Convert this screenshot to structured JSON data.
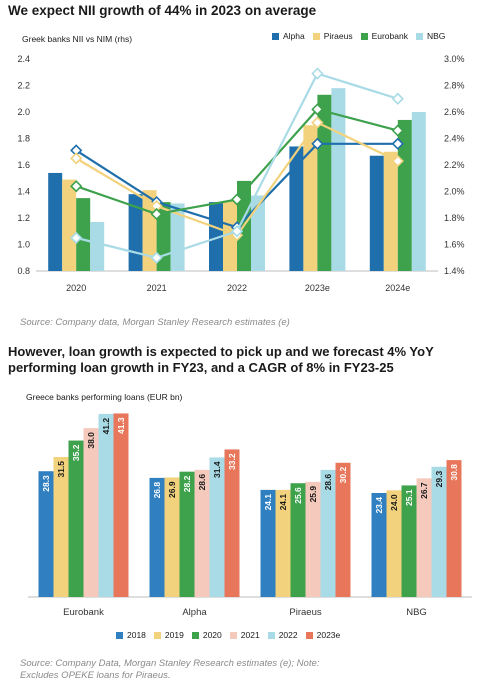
{
  "chart_data": [
    {
      "type": "bar",
      "title": "We expect NII growth of 44% in 2023 on average",
      "subtitle": "Greek banks NII vs NIM (rhs)",
      "categories": [
        "2020",
        "2021",
        "2022",
        "2023e",
        "2024e"
      ],
      "ylim": [
        0.8,
        2.4
      ],
      "yticks": [
        "0.8",
        "1.0",
        "1.2",
        "1.4",
        "1.6",
        "1.8",
        "2.0",
        "2.2",
        "2.4"
      ],
      "y2lim": [
        1.4,
        3.0
      ],
      "y2ticks": [
        "1.4%",
        "1.6%",
        "1.8%",
        "2.0%",
        "2.2%",
        "2.4%",
        "2.6%",
        "2.8%",
        "3.0%"
      ],
      "series": [
        {
          "name": "Alpha",
          "color": "#1f6fad",
          "values": [
            1.54,
            1.38,
            1.32,
            1.74,
            1.67
          ]
        },
        {
          "name": "Piraeus",
          "color": "#f2d27c",
          "values": [
            1.49,
            1.41,
            1.33,
            1.9,
            1.7
          ]
        },
        {
          "name": "Eurobank",
          "color": "#3ea14c",
          "values": [
            1.35,
            1.32,
            1.48,
            2.13,
            1.94
          ]
        },
        {
          "name": "NBG",
          "color": "#a9dbe6",
          "values": [
            1.17,
            1.31,
            1.37,
            2.18,
            2.0
          ]
        }
      ],
      "lines_rhs": [
        {
          "name": "Alpha",
          "color": "#1f6fad",
          "values": [
            2.31,
            1.92,
            1.73,
            2.36,
            2.36
          ]
        },
        {
          "name": "Piraeus",
          "color": "#f2d27c",
          "values": [
            2.25,
            1.89,
            1.67,
            2.52,
            2.23
          ]
        },
        {
          "name": "Eurobank",
          "color": "#3ea14c",
          "values": [
            2.04,
            1.83,
            1.94,
            2.62,
            2.46
          ]
        },
        {
          "name": "NBG",
          "color": "#a9dbe6",
          "values": [
            1.65,
            1.5,
            1.7,
            2.89,
            2.7
          ]
        }
      ],
      "source": "Source: Company data, Morgan Stanley Research estimates (e)"
    },
    {
      "type": "bar",
      "title_line1": "However, loan growth is expected to pick up and we forecast 4% YoY",
      "title_line2": "performing loan growth in FY23, and a CAGR of 8% in FY23-25",
      "subtitle": "Greece banks performing loans (EUR bn)",
      "categories": [
        "Eurobank",
        "Alpha",
        "Piraeus",
        "NBG"
      ],
      "ylim": [
        0,
        45
      ],
      "series": [
        {
          "name": "2018",
          "color": "#2f7fc1",
          "values": [
            28.3,
            26.8,
            24.1,
            23.4
          ]
        },
        {
          "name": "2019",
          "color": "#f2d27c",
          "values": [
            31.5,
            26.9,
            24.1,
            24.0
          ]
        },
        {
          "name": "2020",
          "color": "#3ea14c",
          "values": [
            35.2,
            28.2,
            25.6,
            25.1
          ]
        },
        {
          "name": "2021",
          "color": "#f6c9bd",
          "values": [
            38.0,
            28.6,
            25.9,
            26.7
          ]
        },
        {
          "name": "2022",
          "color": "#a9dbe6",
          "values": [
            41.2,
            31.4,
            28.6,
            29.3
          ]
        },
        {
          "name": "2023e",
          "color": "#e8765a",
          "values": [
            41.3,
            33.2,
            30.2,
            30.8
          ]
        }
      ],
      "source_line1": "Source: Company Data, Morgan Stanley Research estimates (e); Note:",
      "source_line2": "Excludes OPEKE loans for Piraeus."
    }
  ]
}
